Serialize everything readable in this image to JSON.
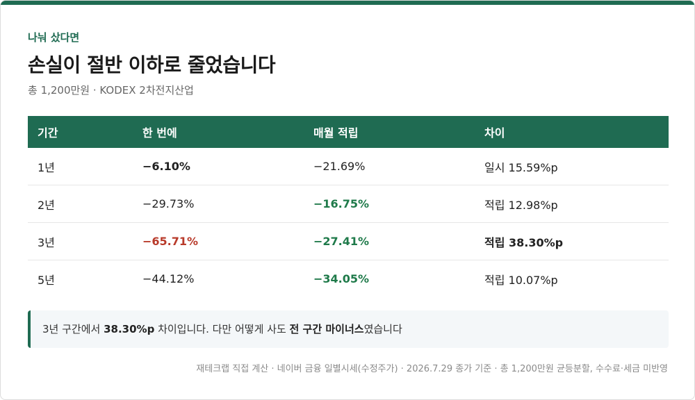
{
  "eyebrow": "나눠 샀다면",
  "headline": "손실이 절반 이하로 줄었습니다",
  "subline": "총 1,200만원 · KODEX 2차전지산업",
  "table": {
    "headers": [
      "기간",
      "한 번에",
      "매월 적립",
      "차이"
    ],
    "rows": [
      {
        "period": "1년",
        "lump": "−6.10%",
        "dca": "−21.69%",
        "diff": "일시 15.59%p"
      },
      {
        "period": "2년",
        "lump": "−29.73%",
        "dca": "−16.75%",
        "diff": "적립 12.98%p"
      },
      {
        "period": "3년",
        "lump": "−65.71%",
        "dca": "−27.41%",
        "diff": "적립 38.30%p"
      },
      {
        "period": "5년",
        "lump": "−44.12%",
        "dca": "−34.05%",
        "diff": "적립 10.07%p"
      }
    ]
  },
  "note": {
    "part1": "3년 구간에서 ",
    "highlight1": "38.30%p",
    "part2": " 차이입니다. 다만 어떻게 사도 ",
    "highlight2": "전 구간 마이너스",
    "part3": "였습니다"
  },
  "footer": "재테크랩 직접 계산 · 네이버 금융 일별시세(수정주가) · 2026.7.29 종가 기준 · 총 1,200만원 균등분할, 수수료·세금 미반영",
  "colors": {
    "accent": "#1f6b52",
    "negative_highlight": "#b83a2a",
    "positive_highlight": "#1f7a4a"
  }
}
